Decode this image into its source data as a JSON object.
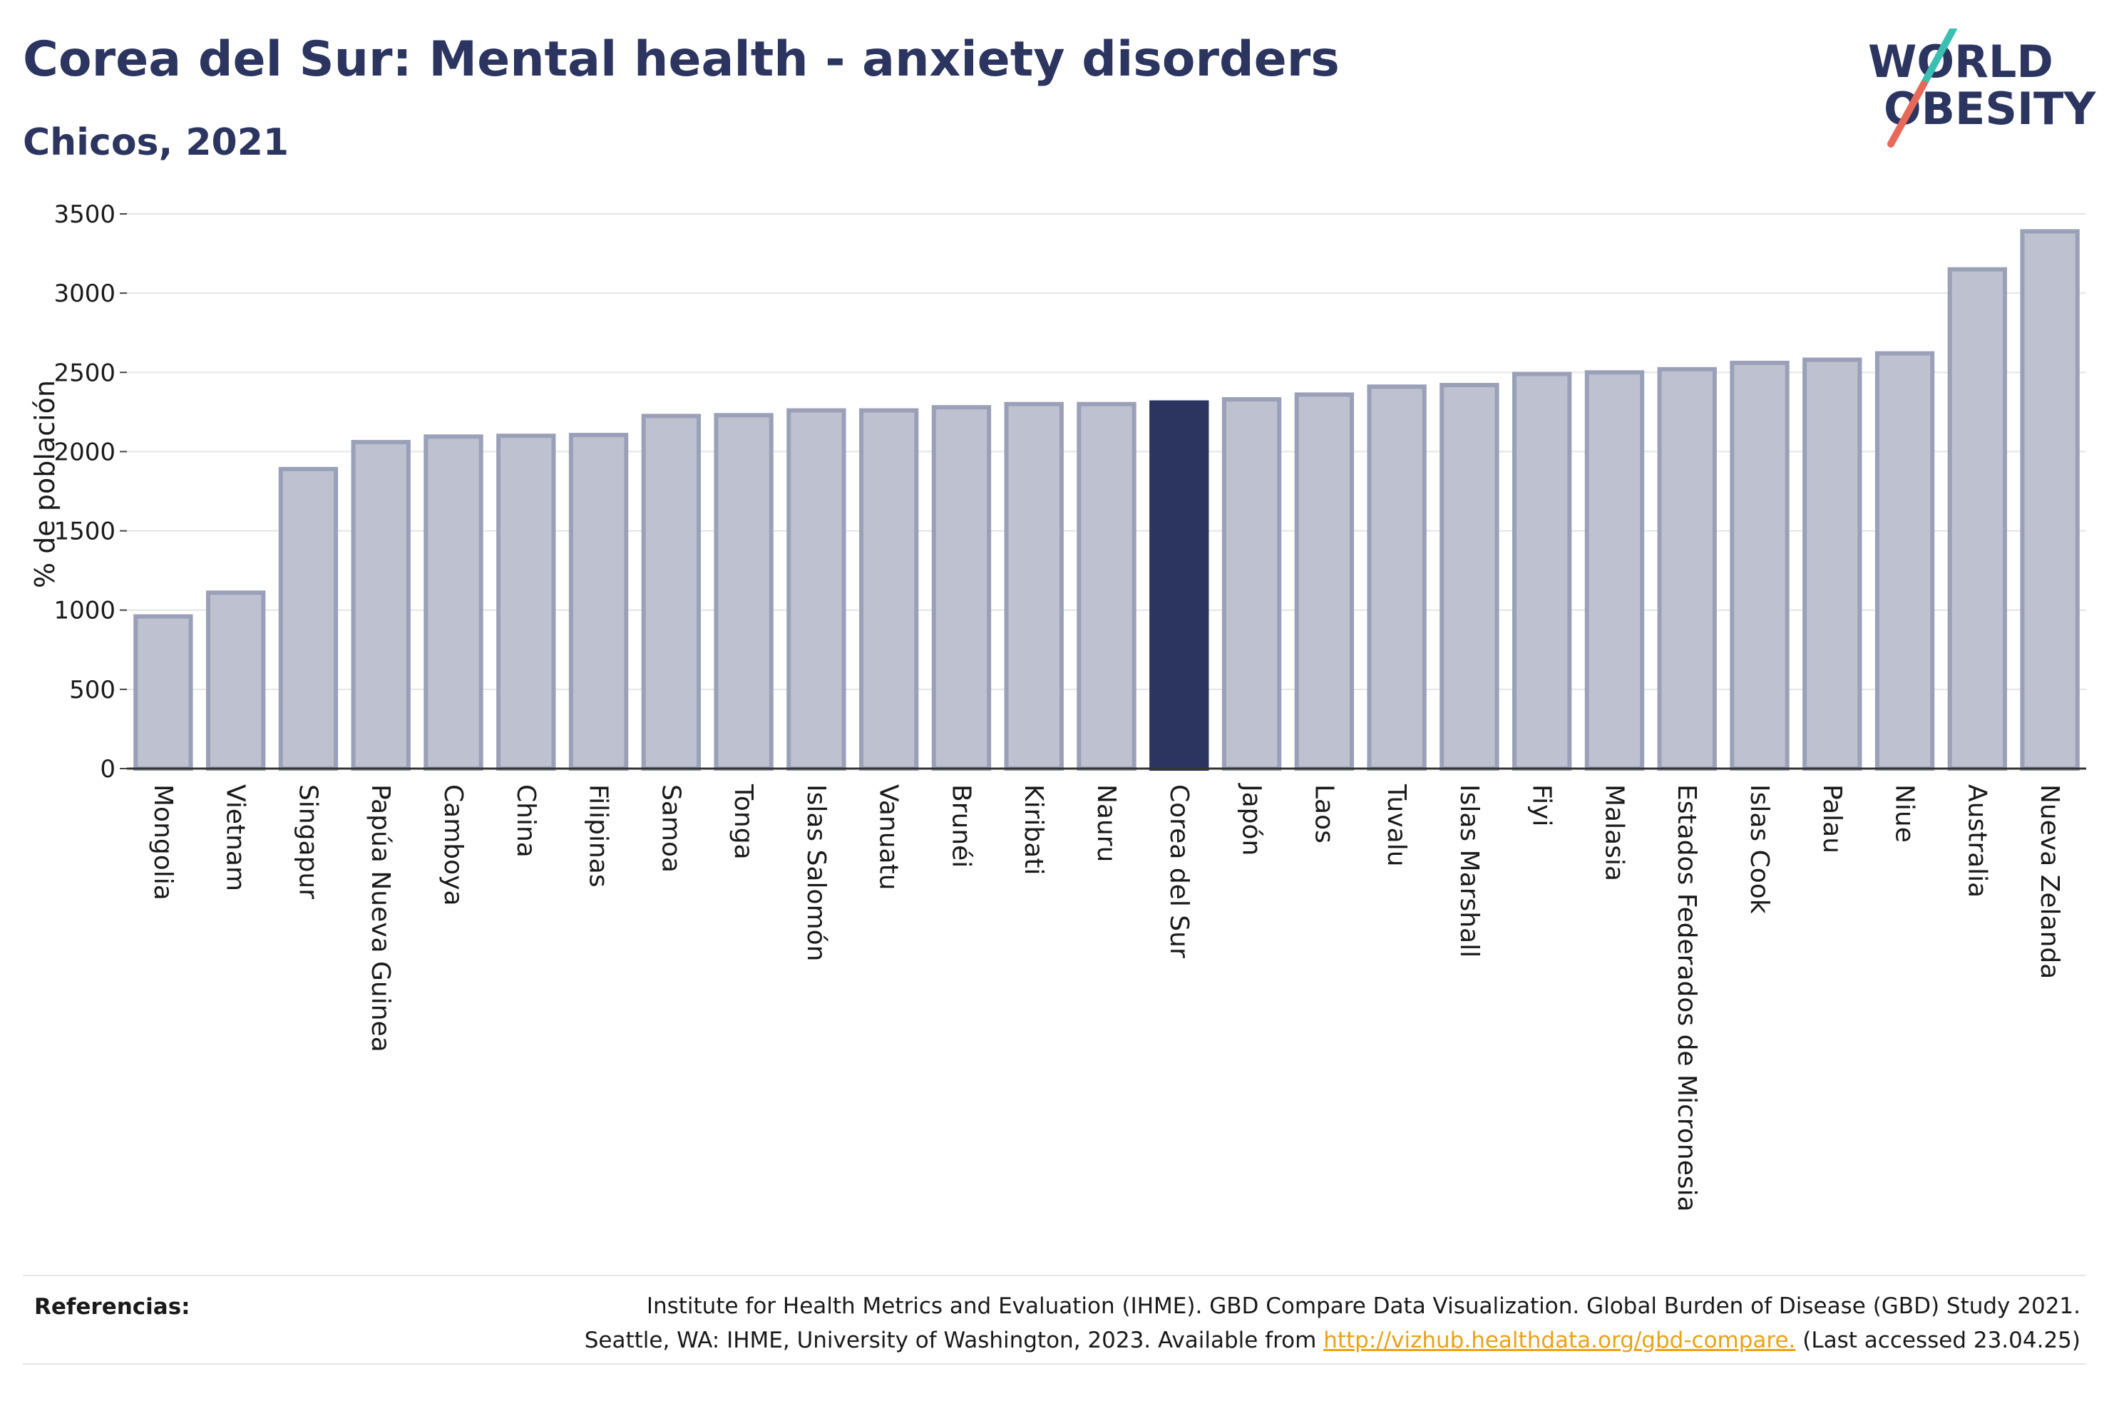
{
  "header": {
    "title": "Corea del Sur: Mental health - anxiety disorders",
    "subtitle": "Chicos, 2021"
  },
  "logo": {
    "line1": "WORLD",
    "line2": "OBESITY",
    "colors": {
      "text": "#2b3560",
      "slash_top": "#3bbfb2",
      "slash_bottom": "#e8685a"
    }
  },
  "chart_data": {
    "type": "bar",
    "ylabel": "% de población",
    "xlabel": "",
    "ylim": [
      0,
      3500
    ],
    "yticks": [
      0,
      500,
      1000,
      1500,
      2000,
      2500,
      3000,
      3500
    ],
    "grid": true,
    "highlight": "Corea del Sur",
    "colors": {
      "bar": "#bec1cf",
      "bar_border": "#9aa0b8",
      "highlight": "#2b3560"
    },
    "categories": [
      "Mongolia",
      "Vietnam",
      "Singapur",
      "Papúa Nueva Guinea",
      "Camboya",
      "China",
      "Filipinas",
      "Samoa",
      "Tonga",
      "Islas Salomón",
      "Vanuatu",
      "Brunéi",
      "Kiribati",
      "Nauru",
      "Corea del Sur",
      "Japón",
      "Laos",
      "Tuvalu",
      "Islas Marshall",
      "Fiyi",
      "Malasia",
      "Estados Federados de Micronesia",
      "Islas Cook",
      "Palau",
      "Niue",
      "Australia",
      "Nueva Zelanda"
    ],
    "values": [
      960,
      1110,
      1890,
      2060,
      2095,
      2100,
      2105,
      2225,
      2230,
      2260,
      2260,
      2280,
      2300,
      2300,
      2310,
      2330,
      2360,
      2410,
      2420,
      2490,
      2500,
      2520,
      2560,
      2580,
      2620,
      3150,
      3390
    ]
  },
  "footer": {
    "ref_label": "Referencias:",
    "ref_line1": "Institute for Health Metrics and Evaluation (IHME). GBD Compare Data Visualization. Global Burden of Disease (GBD) Study 2021.",
    "ref_line2_pre": "Seattle, WA: IHME, University of Washington, 2023. Available from ",
    "ref_link": "http://vizhub.healthdata.org/gbd-compare.",
    "ref_line2_post": " (Last accessed 23.04.25)"
  }
}
